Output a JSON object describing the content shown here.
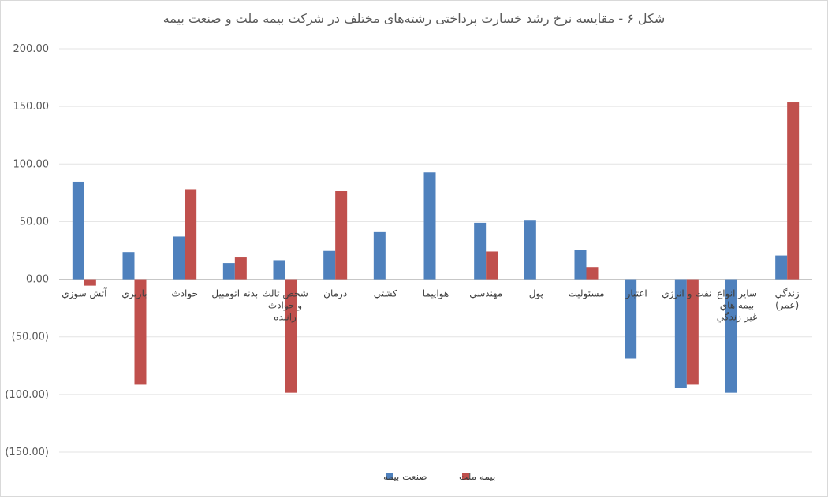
{
  "chart_data": {
    "type": "bar",
    "title": "شکل ۶ - مقایسه نرخ رشد خسارت پرداختی رشته‌های مختلف در شرکت بیمه ملت و صنعت بیمه",
    "categories": [
      [
        "آتش سوزي"
      ],
      [
        "باربري"
      ],
      [
        "حوادث"
      ],
      [
        "بدنه اتومبيل"
      ],
      [
        "شخص ثالث",
        "و حوادث",
        "راننده"
      ],
      [
        "درمان"
      ],
      [
        "كشتي"
      ],
      [
        "هواپيما"
      ],
      [
        "مهندسي"
      ],
      [
        "پول"
      ],
      [
        "مسئوليت"
      ],
      [
        "اعتبار"
      ],
      [
        "نفت و انرژي"
      ],
      [
        "ساير انواع",
        "بيمه هاي",
        "غير زندگي"
      ],
      [
        "زندگي",
        "(عمر)"
      ]
    ],
    "series": [
      {
        "name": "صنعت بیمه",
        "color": "#4f81bd",
        "values": [
          84.5,
          23.5,
          37.0,
          14.0,
          16.5,
          24.5,
          41.5,
          92.5,
          49.0,
          51.5,
          25.5,
          -69.0,
          -94.0,
          -98.5,
          20.5
        ]
      },
      {
        "name": "بیمه ملت",
        "color": "#c0504d",
        "values": [
          -5.5,
          -91.5,
          78.0,
          19.5,
          -98.5,
          76.5,
          0,
          0,
          24.0,
          0,
          10.5,
          0,
          -91.5,
          0,
          153.5
        ]
      }
    ],
    "ylim": [
      -150,
      200
    ],
    "yticks": [
      "(150.00)",
      "(100.00)",
      "(50.00)",
      "0.00",
      "50.00",
      "100.00",
      "150.00",
      "200.00"
    ],
    "ytick_values": [
      -150,
      -100,
      -50,
      0,
      50,
      100,
      150,
      200
    ],
    "xlabel": "",
    "ylabel": "",
    "grid": true,
    "legend_position": "bottom"
  }
}
